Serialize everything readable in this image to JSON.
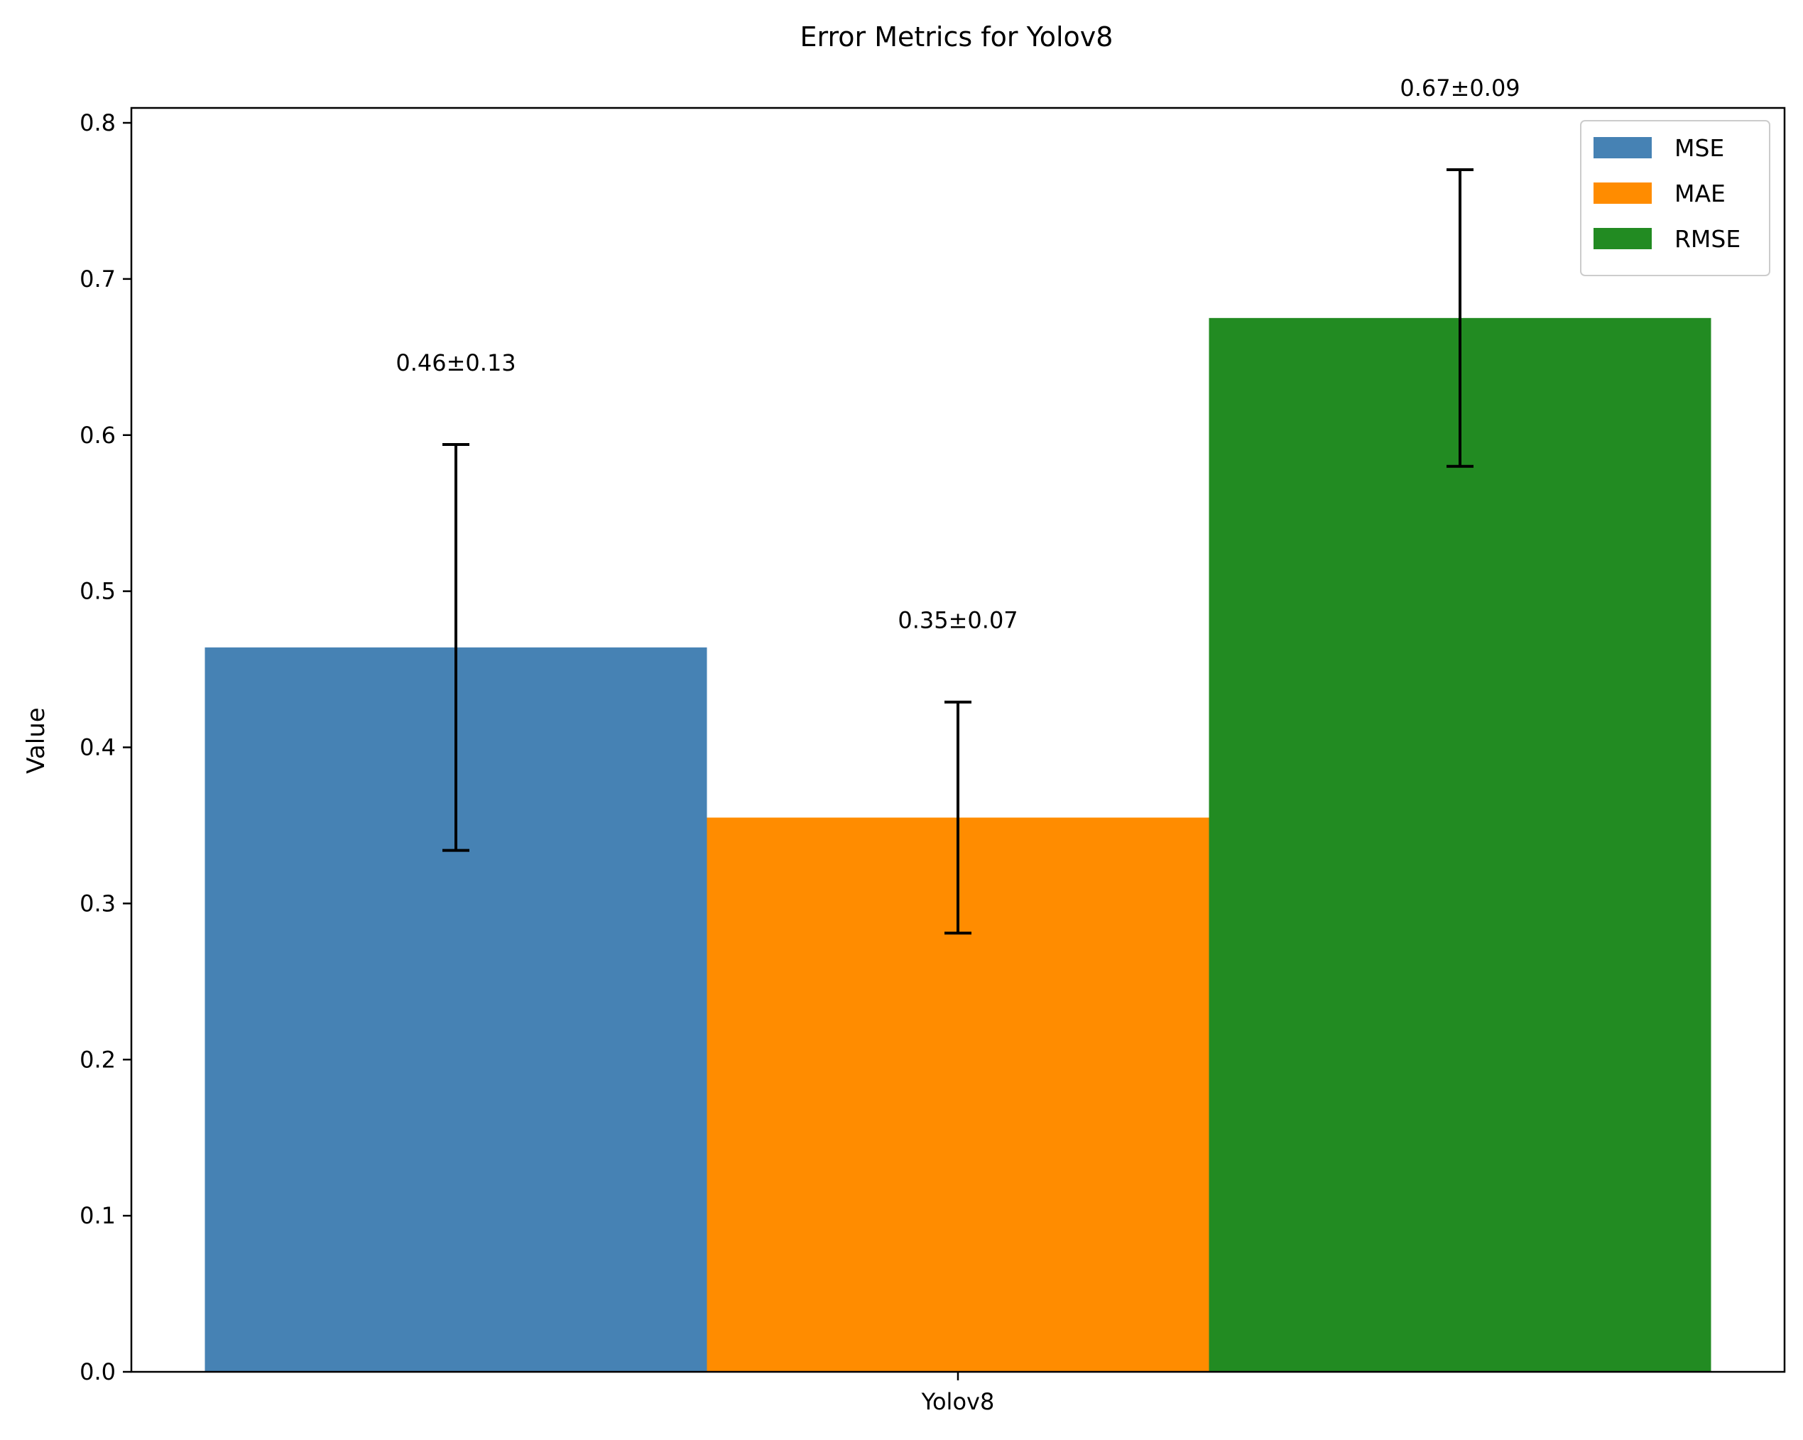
{
  "chart_data": {
    "type": "bar",
    "title": "Error Metrics for Yolov8",
    "xlabel": "",
    "ylabel": "Value",
    "categories": [
      "Yolov8"
    ],
    "ylim": [
      0,
      0.8
    ],
    "yticks": [
      "0.0",
      "0.1",
      "0.2",
      "0.3",
      "0.4",
      "0.5",
      "0.6",
      "0.7",
      "0.8"
    ],
    "grid": false,
    "legend_position": "top-right",
    "series": [
      {
        "name": "MSE",
        "color": "#4682b4",
        "values": [
          0.464
        ],
        "error": [
          0.13
        ],
        "label": "0.46±0.13"
      },
      {
        "name": "MAE",
        "color": "#ff8c00",
        "values": [
          0.355
        ],
        "error": [
          0.074
        ],
        "label": "0.35±0.07"
      },
      {
        "name": "RMSE",
        "color": "#228b22",
        "values": [
          0.675
        ],
        "error": [
          0.095
        ],
        "label": "0.67±0.09"
      }
    ]
  }
}
